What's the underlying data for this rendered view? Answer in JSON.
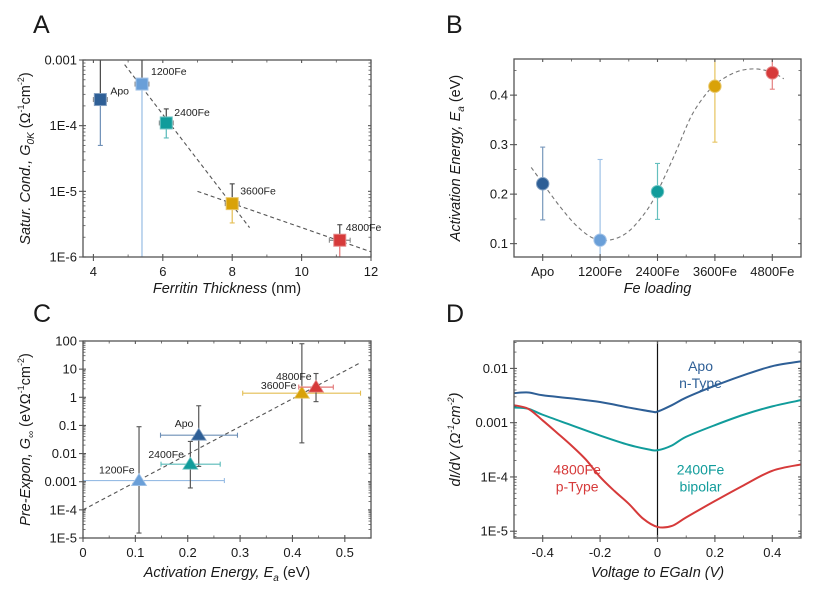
{
  "figure": {
    "colors": {
      "Apo": "#2e5f96",
      "1200Fe": "#6a9fd8",
      "2400Fe": "#119c9b",
      "3600Fe": "#d9a208",
      "4800Fe": "#d63a3a",
      "fit": "#555555",
      "frame": "#555555"
    }
  },
  "chart_data": [
    {
      "id": "A",
      "panel_label": "A",
      "type": "scatter",
      "title": "",
      "xlabel": "Ferritin Thickness (nm)",
      "xlabel_parts": [
        "Ferritin Thickness",
        " (nm)"
      ],
      "ylabel": "Satur. Cond., G0K (Ω⁻¹cm⁻²)",
      "ylabel_parts": [
        "Satur. Cond., G",
        "0K",
        " (Ω",
        "-1",
        "cm",
        "-2",
        ")"
      ],
      "xscale": "linear",
      "yscale": "log",
      "xlim": [
        3.7,
        12
      ],
      "ylim": [
        1e-06,
        0.001
      ],
      "xticks": [
        4,
        6,
        8,
        10,
        12
      ],
      "xtick_labels": [
        "4",
        "6",
        "8",
        "10",
        "12"
      ],
      "yticks": [
        1e-06,
        1e-05,
        0.0001,
        0.001
      ],
      "ytick_labels": [
        "1E-6",
        "1E-5",
        "1E-4",
        "0.001"
      ],
      "marker": "square",
      "series": [
        {
          "name": "Apo",
          "x": 4.2,
          "y": 0.00025,
          "xerr": 0.2,
          "yerr_low": 5e-05,
          "yerr_high": 0.001
        },
        {
          "name": "1200Fe",
          "x": 5.4,
          "y": 0.00043,
          "xerr": 0.2,
          "yerr_low": 1e-06,
          "yerr_high": 0.001
        },
        {
          "name": "2400Fe",
          "x": 6.1,
          "y": 0.00011,
          "xerr": 0.2,
          "yerr_low": 6.5e-05,
          "yerr_high": 0.00018
        },
        {
          "name": "3600Fe",
          "x": 8.0,
          "y": 6.5e-06,
          "xerr": 0.2,
          "yerr_low": 3.3e-06,
          "yerr_high": 1.3e-05
        },
        {
          "name": "4800Fe",
          "x": 11.1,
          "y": 1.8e-06,
          "xerr": 0.3,
          "yerr_low": 1e-06,
          "yerr_high": 3.1e-06
        }
      ],
      "fits": [
        {
          "x": [
            4.9,
            8.5
          ],
          "y": [
            0.00085,
            2.8e-06
          ]
        },
        {
          "x": [
            7.0,
            12.0
          ],
          "y": [
            1e-05,
            1.2e-06
          ]
        }
      ]
    },
    {
      "id": "B",
      "panel_label": "B",
      "type": "scatter",
      "title": "",
      "xlabel": "Fe loading",
      "xlabel_parts": [
        "Fe loading",
        ""
      ],
      "ylabel": "Activation Energy, Ea (eV)",
      "ylabel_parts": [
        "Activation Energy, E",
        "a",
        " (eV)"
      ],
      "xscale": "category",
      "yscale": "linear",
      "categories": [
        "Apo",
        "1200Fe",
        "2400Fe",
        "3600Fe",
        "4800Fe"
      ],
      "xlim": [
        -0.5,
        4.5
      ],
      "ylim": [
        0.073,
        0.473
      ],
      "yticks": [
        0.1,
        0.2,
        0.3,
        0.4
      ],
      "ytick_labels": [
        "0.1",
        "0.2",
        "0.3",
        "0.4"
      ],
      "marker": "circle",
      "series": [
        {
          "name": "Apo",
          "x": 0,
          "y": 0.221,
          "yerr_low": 0.148,
          "yerr_high": 0.295
        },
        {
          "name": "1200Fe",
          "x": 1,
          "y": 0.107,
          "yerr_low": 0.06,
          "yerr_high": 0.27
        },
        {
          "name": "2400Fe",
          "x": 2,
          "y": 0.205,
          "yerr_low": 0.149,
          "yerr_high": 0.262
        },
        {
          "name": "3600Fe",
          "x": 3,
          "y": 0.418,
          "yerr_low": 0.305,
          "yerr_high": 0.5
        },
        {
          "name": "4800Fe",
          "x": 4,
          "y": 0.445,
          "yerr_low": 0.412,
          "yerr_high": 0.5
        }
      ],
      "fit_curve": {
        "x": [
          -0.2,
          0.0,
          0.3,
          0.6,
          0.9,
          1.2,
          1.5,
          1.8,
          2.0,
          2.3,
          2.6,
          2.9,
          3.1,
          3.4,
          3.7,
          4.0,
          4.2
        ],
        "y": [
          0.254,
          0.222,
          0.175,
          0.135,
          0.11,
          0.108,
          0.125,
          0.165,
          0.205,
          0.28,
          0.36,
          0.41,
          0.43,
          0.448,
          0.453,
          0.446,
          0.433
        ]
      }
    },
    {
      "id": "C",
      "panel_label": "C",
      "type": "scatter",
      "title": "",
      "xlabel": "Activation Energy, Ea (eV)",
      "xlabel_parts": [
        "Activation Energy, E",
        "a",
        " (eV)"
      ],
      "ylabel": "Pre-Expon, G∞ (eVΩ⁻¹cm⁻²)",
      "ylabel_parts": [
        "Pre-Expon, G",
        "∞",
        " (eVΩ",
        "-1",
        "cm",
        "-2",
        ")"
      ],
      "xscale": "linear",
      "yscale": "log",
      "xlim": [
        0,
        0.55
      ],
      "ylim": [
        1e-05,
        100
      ],
      "xticks": [
        0,
        0.1,
        0.2,
        0.3,
        0.4,
        0.5
      ],
      "xtick_labels": [
        "0",
        "0.1",
        "0.2",
        "0.3",
        "0.4",
        "0.5"
      ],
      "yticks": [
        1e-05,
        0.0001,
        0.001,
        0.01,
        0.1,
        1,
        10,
        100
      ],
      "ytick_labels": [
        "1E-5",
        "1E-4",
        "0.001",
        "0.01",
        "0.1",
        "1",
        "10",
        "100"
      ],
      "marker": "triangle",
      "series": [
        {
          "name": "Apo",
          "x": 0.221,
          "y": 0.045,
          "xerr_low": 0.148,
          "xerr_high": 0.295,
          "yerr_low": 0.0035,
          "yerr_high": 0.5
        },
        {
          "name": "1200Fe",
          "x": 0.107,
          "y": 0.0011,
          "xerr_low": 0.0,
          "xerr_high": 0.27,
          "yerr_low": 1.5e-05,
          "yerr_high": 0.09
        },
        {
          "name": "2400Fe",
          "x": 0.205,
          "y": 0.0042,
          "xerr_low": 0.149,
          "xerr_high": 0.262,
          "yerr_low": 0.0006,
          "yerr_high": 0.027
        },
        {
          "name": "3600Fe",
          "x": 0.418,
          "y": 1.4,
          "xerr_low": 0.305,
          "xerr_high": 0.53,
          "yerr_low": 0.024,
          "yerr_high": 80
        },
        {
          "name": "4800Fe",
          "x": 0.445,
          "y": 2.3,
          "xerr_low": 0.412,
          "xerr_high": 0.478,
          "yerr_low": 0.7,
          "yerr_high": 7
        }
      ],
      "fits": [
        {
          "x": [
            0.0,
            0.53
          ],
          "y": [
            0.0001,
            17
          ]
        }
      ]
    },
    {
      "id": "D",
      "panel_label": "D",
      "type": "line",
      "title": "",
      "xlabel": "Voltage to EGaIn (V)",
      "xlabel_parts": [
        "Voltage to EGaIn (V)",
        ""
      ],
      "ylabel": "dI/dV (Ω⁻¹cm⁻²)",
      "ylabel_parts": [
        "dI/dV (Ω",
        "-1",
        "cm",
        "-2",
        ")"
      ],
      "xscale": "linear",
      "yscale": "log",
      "xlim": [
        -0.5,
        0.5
      ],
      "ylim": [
        7.5e-06,
        0.032
      ],
      "xticks": [
        -0.4,
        -0.2,
        0,
        0.2,
        0.4
      ],
      "xtick_labels": [
        "-0.4",
        "-0.2",
        "0",
        "0.2",
        "0.4"
      ],
      "yticks": [
        1e-05,
        0.0001,
        0.001,
        0.01
      ],
      "ytick_labels": [
        "1E-5",
        "1E-4",
        "0.001",
        "0.01"
      ],
      "vline_x": 0,
      "series": [
        {
          "name": "Apo n-Type",
          "color_key": "Apo",
          "labels": [
            "Apo",
            "n-Type"
          ],
          "label_at": [
            0.15,
            0.009
          ],
          "x": [
            -0.5,
            -0.45,
            -0.4,
            -0.3,
            -0.2,
            -0.1,
            -0.02,
            0.0,
            0.05,
            0.1,
            0.2,
            0.3,
            0.4,
            0.5
          ],
          "y": [
            0.0035,
            0.0036,
            0.0032,
            0.0028,
            0.0024,
            0.0019,
            0.0016,
            0.0016,
            0.0021,
            0.0029,
            0.0048,
            0.0075,
            0.011,
            0.0135
          ]
        },
        {
          "name": "2400Fe bipolar",
          "color_key": "2400Fe",
          "labels": [
            "2400Fe",
            "bipolar"
          ],
          "label_at": [
            0.15,
            0.00011
          ],
          "x": [
            -0.5,
            -0.45,
            -0.4,
            -0.3,
            -0.2,
            -0.1,
            -0.03,
            0.0,
            0.05,
            0.1,
            0.2,
            0.3,
            0.4,
            0.5
          ],
          "y": [
            0.0019,
            0.0018,
            0.0014,
            0.0009,
            0.00058,
            0.00039,
            0.00032,
            0.00031,
            0.00038,
            0.00055,
            0.0009,
            0.0014,
            0.002,
            0.0026
          ]
        },
        {
          "name": "4800Fe p-Type",
          "color_key": "4800Fe",
          "labels": [
            "4800Fe",
            "p-Type"
          ],
          "label_at": [
            -0.28,
            0.00011
          ],
          "x": [
            -0.5,
            -0.45,
            -0.4,
            -0.35,
            -0.3,
            -0.25,
            -0.2,
            -0.15,
            -0.1,
            -0.05,
            0.0,
            0.05,
            0.1,
            0.2,
            0.3,
            0.4,
            0.5
          ],
          "y": [
            0.0021,
            0.0018,
            0.0011,
            0.00065,
            0.00038,
            0.00021,
            0.0001,
            5.5e-05,
            3.2e-05,
            1.7e-05,
            1.2e-05,
            1.25e-05,
            1.8e-05,
            3.6e-05,
            7e-05,
            0.00013,
            0.00017
          ]
        }
      ]
    }
  ]
}
